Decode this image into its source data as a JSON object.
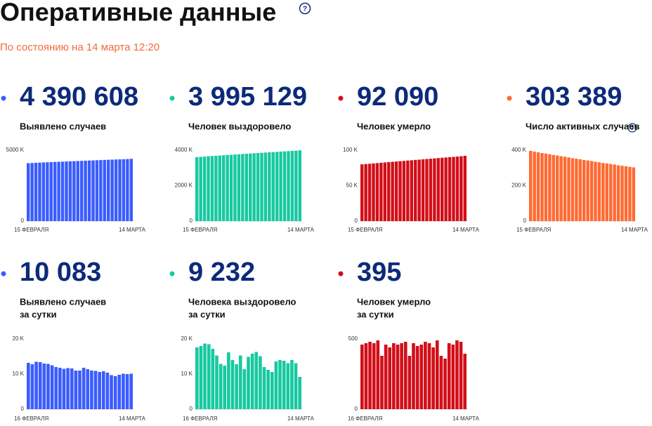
{
  "header": {
    "title": "Оперативные данные",
    "subtitle": "По состоянию на 14 марта 12:20"
  },
  "chart_data": [
    {
      "type": "bar",
      "headline": "4 390 608",
      "label": [
        "Выявлено случаев"
      ],
      "color": "#3a5cff",
      "categories": [
        "15 ФЕВРАЛЯ",
        null,
        null,
        null,
        null,
        null,
        null,
        null,
        null,
        null,
        null,
        null,
        null,
        null,
        null,
        null,
        null,
        null,
        null,
        null,
        null,
        null,
        null,
        null,
        null,
        null,
        null,
        "14 МАРТА"
      ],
      "values": [
        4086,
        4099,
        4112,
        4124,
        4136,
        4148,
        4160,
        4172,
        4183,
        4194,
        4205,
        4216,
        4227,
        4238,
        4249,
        4260,
        4271,
        4282,
        4293,
        4303,
        4314,
        4325,
        4335,
        4346,
        4356,
        4366,
        4377,
        4391
      ],
      "ylim": [
        0,
        5000
      ],
      "yticks": [
        0,
        {
          "value": 5000,
          "label": "5000 K"
        }
      ]
    },
    {
      "type": "bar",
      "headline": "3 995 129",
      "label": [
        "Человек выздоровело"
      ],
      "color": "#17c9a0",
      "categories": [
        "15 ФЕВРАЛЯ",
        null,
        null,
        null,
        null,
        null,
        null,
        null,
        null,
        null,
        null,
        null,
        null,
        null,
        null,
        null,
        null,
        null,
        null,
        null,
        null,
        null,
        null,
        null,
        null,
        null,
        null,
        "14 МАРТА"
      ],
      "values": [
        3610,
        3625,
        3640,
        3655,
        3670,
        3685,
        3700,
        3715,
        3729,
        3743,
        3757,
        3771,
        3785,
        3799,
        3813,
        3827,
        3841,
        3855,
        3868,
        3881,
        3894,
        3907,
        3920,
        3933,
        3946,
        3959,
        3972,
        3995
      ],
      "ylim": [
        0,
        4000
      ],
      "yticks": [
        0,
        {
          "value": 2000,
          "label": "2000 K"
        },
        {
          "value": 4000,
          "label": "4000 K"
        }
      ]
    },
    {
      "type": "bar",
      "headline": "92 090",
      "label": [
        "Человек умерло"
      ],
      "color": "#d20e18",
      "categories": [
        "15 ФЕВРАЛЯ",
        null,
        null,
        null,
        null,
        null,
        null,
        null,
        null,
        null,
        null,
        null,
        null,
        null,
        null,
        null,
        null,
        null,
        null,
        null,
        null,
        null,
        null,
        null,
        null,
        null,
        null,
        "14 МАРТА"
      ],
      "values": [
        80.0,
        80.5,
        80.9,
        81.4,
        81.8,
        82.3,
        82.7,
        83.2,
        83.6,
        84.1,
        84.5,
        84.9,
        85.4,
        85.8,
        86.3,
        86.7,
        87.1,
        87.6,
        88.0,
        88.4,
        88.9,
        89.3,
        89.7,
        90.2,
        90.6,
        91.0,
        91.5,
        92.1
      ],
      "ylim": [
        0,
        100
      ],
      "yticks": [
        0,
        {
          "value": 50,
          "label": "50 K"
        },
        {
          "value": 100,
          "label": "100 K"
        }
      ]
    },
    {
      "type": "bar",
      "headline": "303 389",
      "label": [
        "Число активных случаев"
      ],
      "color": "#ff6a32",
      "categories": [
        "15 ФЕВРАЛЯ",
        null,
        null,
        null,
        null,
        null,
        null,
        null,
        null,
        null,
        null,
        null,
        null,
        null,
        null,
        null,
        null,
        null,
        null,
        null,
        null,
        null,
        null,
        null,
        null,
        null,
        null,
        "14 МАРТА"
      ],
      "values": [
        396,
        392,
        388,
        384,
        381,
        377,
        373,
        370,
        366,
        363,
        359,
        355,
        352,
        349,
        345,
        342,
        339,
        335,
        332,
        328,
        325,
        322,
        319,
        315,
        312,
        309,
        306,
        303
      ],
      "ylim": [
        0,
        400
      ],
      "yticks": [
        0,
        {
          "value": 200,
          "label": "200 K"
        },
        {
          "value": 400,
          "label": "400 K"
        }
      ]
    },
    {
      "type": "bar",
      "headline": "10 083",
      "label": [
        "Выявлено случаев",
        "за сутки"
      ],
      "color": "#3a5cff",
      "categories": [
        "16 ФЕВРАЛЯ",
        null,
        null,
        null,
        null,
        null,
        null,
        null,
        null,
        null,
        null,
        null,
        null,
        null,
        null,
        null,
        null,
        null,
        null,
        null,
        null,
        null,
        null,
        null,
        null,
        null,
        "14 МАРТА"
      ],
      "values": [
        13.2,
        12.8,
        13.5,
        13.4,
        13.0,
        12.9,
        12.5,
        12.0,
        11.8,
        11.5,
        11.7,
        11.6,
        11.0,
        11.0,
        11.8,
        11.4,
        11.0,
        10.9,
        10.6,
        10.8,
        10.4,
        9.7,
        9.4,
        9.8,
        10.1,
        10.0,
        10.1
      ],
      "ylim": [
        0,
        20
      ],
      "yticks": [
        0,
        {
          "value": 10,
          "label": "10 K"
        },
        {
          "value": 20,
          "label": "20 K"
        }
      ]
    },
    {
      "type": "bar",
      "headline": "9 232",
      "label": [
        "Человека выздоровело",
        "за сутки"
      ],
      "color": "#17c9a0",
      "categories": [
        "16 ФЕВРАЛЯ",
        null,
        null,
        null,
        null,
        null,
        null,
        null,
        null,
        null,
        null,
        null,
        null,
        null,
        null,
        null,
        null,
        null,
        null,
        null,
        null,
        null,
        null,
        null,
        null,
        null,
        "14 МАРТА"
      ],
      "values": [
        17.6,
        18.0,
        18.7,
        18.5,
        17.2,
        15.3,
        12.9,
        12.4,
        16.2,
        14.0,
        12.8,
        15.3,
        11.4,
        14.9,
        15.8,
        16.3,
        15.1,
        12.0,
        11.2,
        10.6,
        13.6,
        14.0,
        13.8,
        13.1,
        14.0,
        13.1,
        9.2
      ],
      "ylim": [
        0,
        20
      ],
      "yticks": [
        0,
        {
          "value": 10,
          "label": "10 K"
        },
        {
          "value": 20,
          "label": "20 K"
        }
      ]
    },
    {
      "type": "bar",
      "headline": "395",
      "label": [
        "Человек умерло",
        "за сутки"
      ],
      "color": "#d20e18",
      "categories": [
        "16 ФЕВРАЛЯ",
        null,
        null,
        null,
        null,
        null,
        null,
        null,
        null,
        null,
        null,
        null,
        null,
        null,
        null,
        null,
        null,
        null,
        null,
        null,
        null,
        null,
        null,
        null,
        null,
        null,
        "14 МАРТА"
      ],
      "values": [
        460,
        470,
        480,
        470,
        490,
        380,
        460,
        440,
        470,
        460,
        470,
        480,
        380,
        470,
        450,
        460,
        480,
        470,
        440,
        490,
        380,
        360,
        470,
        460,
        490,
        480,
        395
      ],
      "ylim": [
        0,
        500
      ],
      "yticks": [
        0,
        500
      ]
    }
  ]
}
